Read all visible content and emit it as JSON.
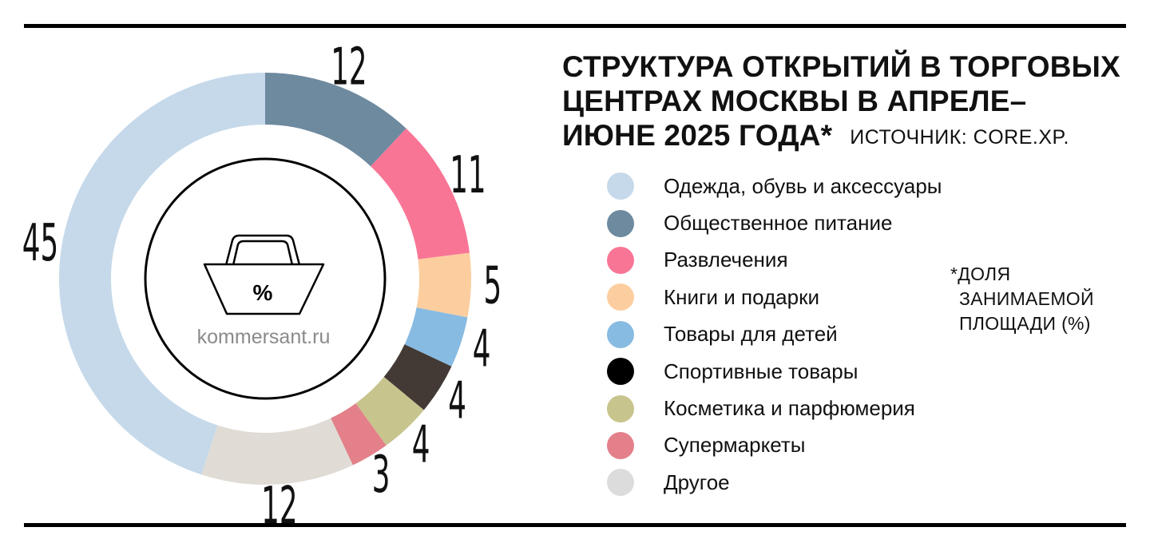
{
  "title": {
    "line1": "СТРУКТУРА ОТКРЫТИЙ В ТОРГОВЫХ",
    "line2": "ЦЕНТРАХ МОСКВЫ В АПРЕЛЕ–",
    "line3": "ИЮНЕ 2025 ГОДА*",
    "source": "ИСТОЧНИК: CORE.XP."
  },
  "footnote": {
    "line1": "*ДОЛЯ",
    "line2": "ЗАНИМАЕМОЙ",
    "line3": "ПЛОЩАДИ (%)"
  },
  "center": {
    "symbol": "%",
    "brand": "kommersant.ru"
  },
  "chart_data": {
    "type": "pie",
    "donut": true,
    "start": "top",
    "direction": "clockwise",
    "title": "СТРУКТУРА ОТКРЫТИЙ В ТОРГОВЫХ ЦЕНТРАХ МОСКВЫ В АПРЕЛЕ–ИЮНЕ 2025 ГОДА*",
    "unit": "%",
    "legend_position": "right",
    "slices": [
      {
        "label": "Общественное питание",
        "value": 12,
        "display": "12",
        "color": "#6E8A9F"
      },
      {
        "label": "Развлечения",
        "value": 11,
        "display": "11",
        "color": "#F87596"
      },
      {
        "label": "Книги и подарки",
        "value": 5,
        "display": "5",
        "color": "#FCCE9F"
      },
      {
        "label": "Товары для детей",
        "value": 4,
        "display": "4",
        "color": "#88BBE2"
      },
      {
        "label": "Спортивные товары",
        "value": 4,
        "display": "4",
        "color": "#433A35"
      },
      {
        "label": "Косметика и парфюмерия",
        "value": 4,
        "display": "4",
        "color": "#C8C48D"
      },
      {
        "label": "Супермаркеты",
        "value": 3,
        "display": "3",
        "color": "#E3808A"
      },
      {
        "label": "Другое",
        "value": 12,
        "display": "12",
        "color": "#E0DCD5"
      },
      {
        "label": "Одежда, обувь и аксессуары",
        "value": 45,
        "display": "45",
        "color": "#C5D9EA"
      }
    ]
  },
  "legend": [
    {
      "label": "Одежда, обувь и аксессуары",
      "color": "#C5D9EA"
    },
    {
      "label": "Общественное питание",
      "color": "#6E8A9F"
    },
    {
      "label": "Развлечения",
      "color": "#F87596"
    },
    {
      "label": "Книги и подарки",
      "color": "#FCCE9F"
    },
    {
      "label": "Товары для детей",
      "color": "#88BBE2"
    },
    {
      "label": "Спортивные товары",
      "color": "#000000"
    },
    {
      "label": "Косметика и парфюмерия",
      "color": "#C8C48D"
    },
    {
      "label": "Супермаркеты",
      "color": "#E3808A"
    },
    {
      "label": "Другое",
      "color": "#DCDCDC"
    }
  ]
}
